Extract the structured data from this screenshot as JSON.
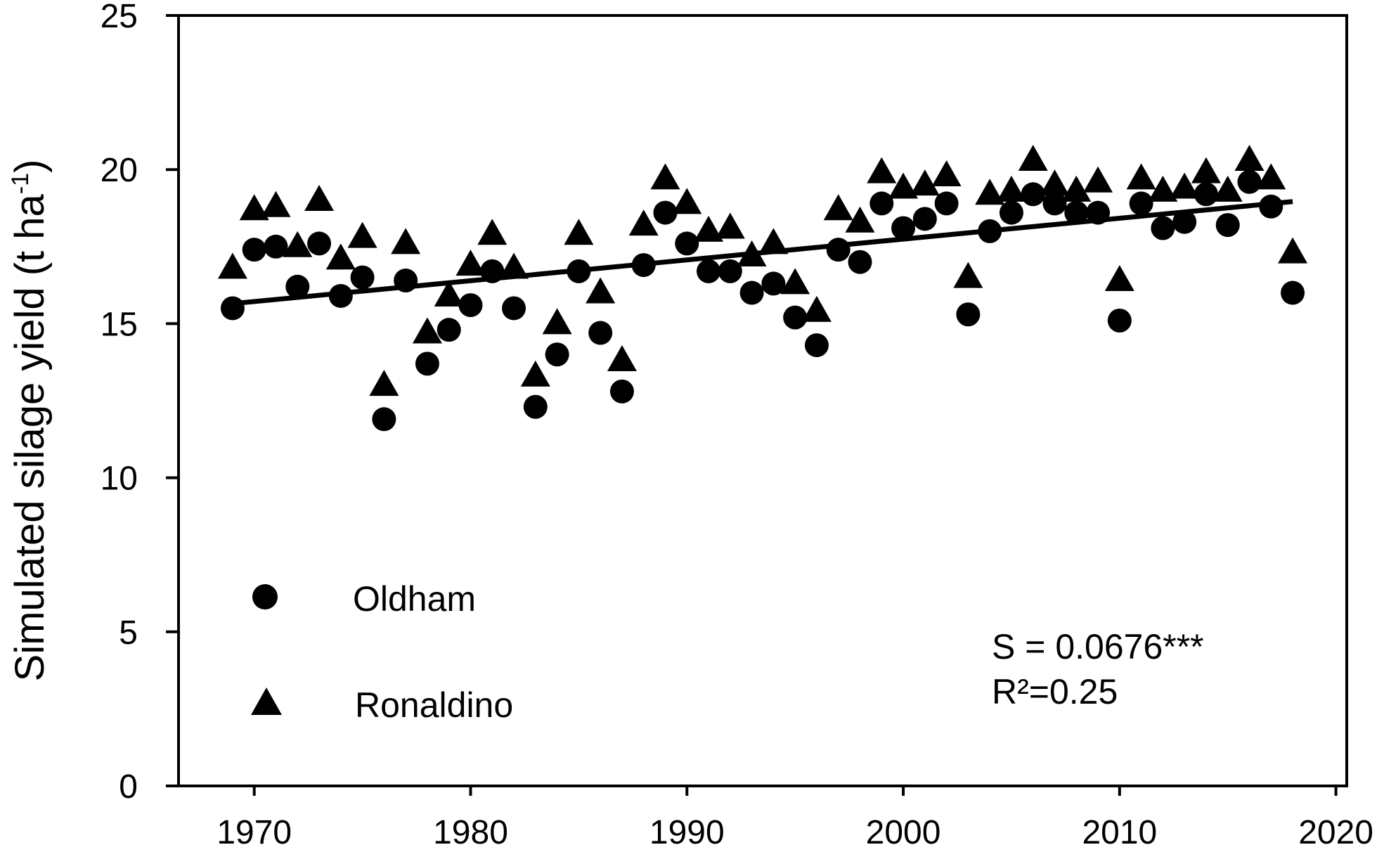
{
  "chart_data": {
    "type": "scatter",
    "title": "",
    "xlabel": "",
    "ylabel": "Simulated silage yield (t ha",
    "ylabel_superscript": "-1",
    "ylabel_suffix": ")",
    "xlim": [
      1966.5,
      2020.5
    ],
    "ylim": [
      0,
      25
    ],
    "x_ticks": [
      1970,
      1980,
      1990,
      2000,
      2010,
      2020
    ],
    "y_ticks": [
      0,
      5,
      10,
      15,
      20,
      25
    ],
    "x_tick_labels": [
      "1970",
      "1980",
      "1990",
      "2000",
      "2010",
      "2020"
    ],
    "y_tick_labels": [
      "0",
      "5",
      "10",
      "15",
      "20",
      "25"
    ],
    "grid": false,
    "legend_position": "bottom-left",
    "series": [
      {
        "name": "Oldham",
        "marker": "circle",
        "color": "#000000",
        "x": [
          1969,
          1970,
          1971,
          1972,
          1973,
          1974,
          1975,
          1976,
          1977,
          1978,
          1979,
          1980,
          1981,
          1982,
          1983,
          1984,
          1985,
          1986,
          1987,
          1988,
          1989,
          1990,
          1991,
          1992,
          1993,
          1994,
          1995,
          1996,
          1997,
          1998,
          1999,
          2000,
          2001,
          2002,
          2003,
          2004,
          2005,
          2006,
          2007,
          2008,
          2009,
          2010,
          2011,
          2012,
          2013,
          2014,
          2015,
          2016,
          2017,
          2018
        ],
        "y": [
          15.5,
          17.4,
          17.5,
          16.2,
          17.6,
          15.9,
          16.5,
          11.9,
          16.4,
          13.7,
          14.8,
          15.6,
          16.7,
          15.5,
          12.3,
          14.0,
          16.7,
          14.7,
          12.8,
          16.9,
          18.6,
          17.6,
          16.7,
          16.7,
          16.0,
          16.3,
          15.2,
          14.3,
          17.4,
          17.0,
          18.9,
          18.1,
          18.4,
          18.9,
          15.3,
          18.0,
          18.6,
          19.2,
          18.9,
          18.6,
          18.6,
          15.1,
          18.9,
          18.1,
          18.3,
          19.2,
          18.2,
          19.6,
          18.8,
          16.0
        ]
      },
      {
        "name": "Ronaldino",
        "marker": "triangle",
        "color": "#000000",
        "x": [
          1969,
          1970,
          1971,
          1972,
          1973,
          1974,
          1975,
          1976,
          1977,
          1978,
          1979,
          1980,
          1981,
          1982,
          1983,
          1984,
          1985,
          1986,
          1987,
          1988,
          1989,
          1990,
          1991,
          1992,
          1993,
          1994,
          1995,
          1996,
          1997,
          1998,
          1999,
          2000,
          2001,
          2002,
          2003,
          2004,
          2005,
          2006,
          2007,
          2008,
          2009,
          2010,
          2011,
          2012,
          2013,
          2014,
          2015,
          2016,
          2017,
          2018
        ],
        "y": [
          16.8,
          18.7,
          18.8,
          17.5,
          19.0,
          17.1,
          17.8,
          13.0,
          17.6,
          14.7,
          15.9,
          16.9,
          17.9,
          16.8,
          13.3,
          15.0,
          17.9,
          16.0,
          13.8,
          18.2,
          19.7,
          18.9,
          18.0,
          18.1,
          17.2,
          17.6,
          16.3,
          15.4,
          18.7,
          18.3,
          19.9,
          19.4,
          19.5,
          19.8,
          16.5,
          19.2,
          19.3,
          20.3,
          19.5,
          19.3,
          19.6,
          16.4,
          19.7,
          19.3,
          19.4,
          19.9,
          19.3,
          20.3,
          19.7,
          17.3
        ]
      }
    ],
    "trendline": {
      "x": [
        1969,
        2018
      ],
      "y": [
        15.65,
        18.96
      ],
      "color": "#000000"
    },
    "annotations": {
      "slope_text": "S = 0.0676***",
      "r2_text": "R²=0.25"
    }
  }
}
